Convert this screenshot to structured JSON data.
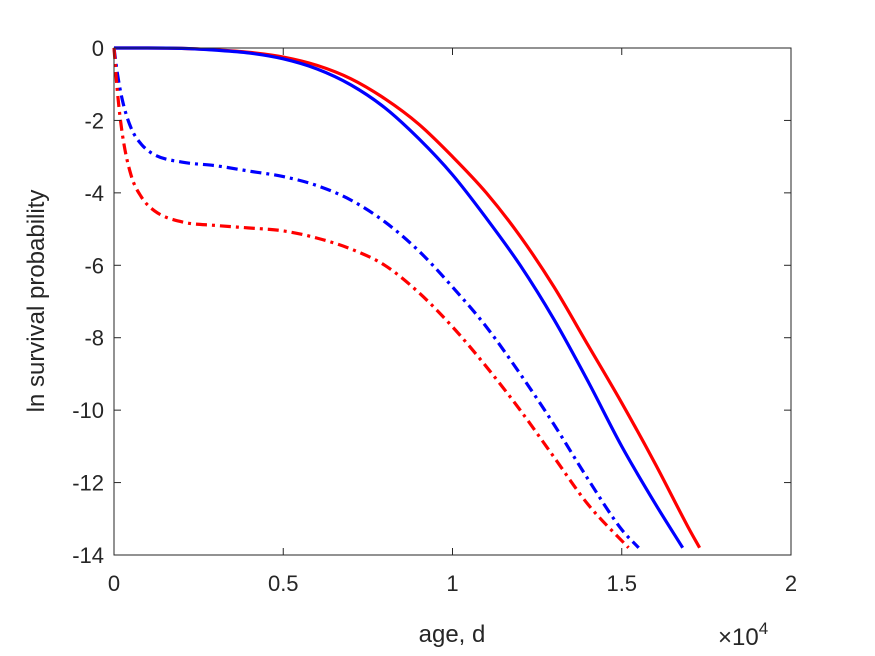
{
  "chart_data": {
    "type": "line",
    "title": "",
    "xlabel": "age, d",
    "ylabel": "ln survival probability",
    "x_exponent_label": {
      "base": "×10",
      "exp": "4"
    },
    "xlim": [
      0,
      20000
    ],
    "ylim": [
      -14,
      0
    ],
    "xticks": [
      0,
      5000,
      10000,
      15000,
      20000
    ],
    "xtick_labels": [
      "0",
      "0.5",
      "1",
      "1.5",
      "2"
    ],
    "yticks": [
      0,
      -2,
      -4,
      -6,
      -8,
      -10,
      -12,
      -14
    ],
    "ytick_labels": [
      "0",
      "-2",
      "-4",
      "-6",
      "-8",
      "-10",
      "-12",
      "-14"
    ],
    "grid": false,
    "legend": null,
    "series": [
      {
        "color": "#ff0000",
        "style": "solid",
        "points": [
          [
            0,
            0
          ],
          [
            1000,
            0
          ],
          [
            2000,
            -0.01
          ],
          [
            3000,
            -0.05
          ],
          [
            4000,
            -0.12
          ],
          [
            5000,
            -0.25
          ],
          [
            6000,
            -0.48
          ],
          [
            7000,
            -0.85
          ],
          [
            8000,
            -1.4
          ],
          [
            9000,
            -2.1
          ],
          [
            10000,
            -3.0
          ],
          [
            11000,
            -4.0
          ],
          [
            12000,
            -5.2
          ],
          [
            13000,
            -6.6
          ],
          [
            14000,
            -8.2
          ],
          [
            15000,
            -9.8
          ],
          [
            16000,
            -11.5
          ],
          [
            17000,
            -13.3
          ],
          [
            17300,
            -13.8
          ]
        ]
      },
      {
        "color": "#0000ff",
        "style": "solid",
        "points": [
          [
            0,
            0
          ],
          [
            1000,
            0
          ],
          [
            2000,
            -0.01
          ],
          [
            3000,
            -0.06
          ],
          [
            4000,
            -0.14
          ],
          [
            5000,
            -0.3
          ],
          [
            6000,
            -0.58
          ],
          [
            7000,
            -1.02
          ],
          [
            8000,
            -1.65
          ],
          [
            9000,
            -2.5
          ],
          [
            10000,
            -3.5
          ],
          [
            11000,
            -4.7
          ],
          [
            12000,
            -6.0
          ],
          [
            13000,
            -7.5
          ],
          [
            14000,
            -9.2
          ],
          [
            15000,
            -11.0
          ],
          [
            16000,
            -12.6
          ],
          [
            16800,
            -13.8
          ]
        ]
      },
      {
        "color": "#0000ff",
        "style": "dashdot",
        "points": [
          [
            0,
            0
          ],
          [
            100,
            -0.7
          ],
          [
            250,
            -1.45
          ],
          [
            500,
            -2.2
          ],
          [
            800,
            -2.65
          ],
          [
            1200,
            -2.95
          ],
          [
            2000,
            -3.15
          ],
          [
            3000,
            -3.25
          ],
          [
            4000,
            -3.4
          ],
          [
            5000,
            -3.55
          ],
          [
            6000,
            -3.8
          ],
          [
            7000,
            -4.2
          ],
          [
            8000,
            -4.8
          ],
          [
            9000,
            -5.6
          ],
          [
            10000,
            -6.6
          ],
          [
            11000,
            -7.7
          ],
          [
            12000,
            -9.0
          ],
          [
            13000,
            -10.4
          ],
          [
            14000,
            -11.9
          ],
          [
            15000,
            -13.3
          ],
          [
            15500,
            -13.8
          ]
        ]
      },
      {
        "color": "#ff0000",
        "style": "dashdot",
        "points": [
          [
            0,
            0
          ],
          [
            100,
            -1.2
          ],
          [
            250,
            -2.4
          ],
          [
            500,
            -3.5
          ],
          [
            800,
            -4.1
          ],
          [
            1200,
            -4.5
          ],
          [
            2000,
            -4.8
          ],
          [
            3000,
            -4.9
          ],
          [
            4000,
            -4.97
          ],
          [
            5000,
            -5.05
          ],
          [
            6000,
            -5.25
          ],
          [
            7000,
            -5.55
          ],
          [
            8000,
            -6.0
          ],
          [
            9000,
            -6.75
          ],
          [
            10000,
            -7.7
          ],
          [
            11000,
            -8.8
          ],
          [
            12000,
            -10.0
          ],
          [
            13000,
            -11.3
          ],
          [
            14000,
            -12.6
          ],
          [
            15200,
            -13.8
          ]
        ]
      }
    ]
  }
}
